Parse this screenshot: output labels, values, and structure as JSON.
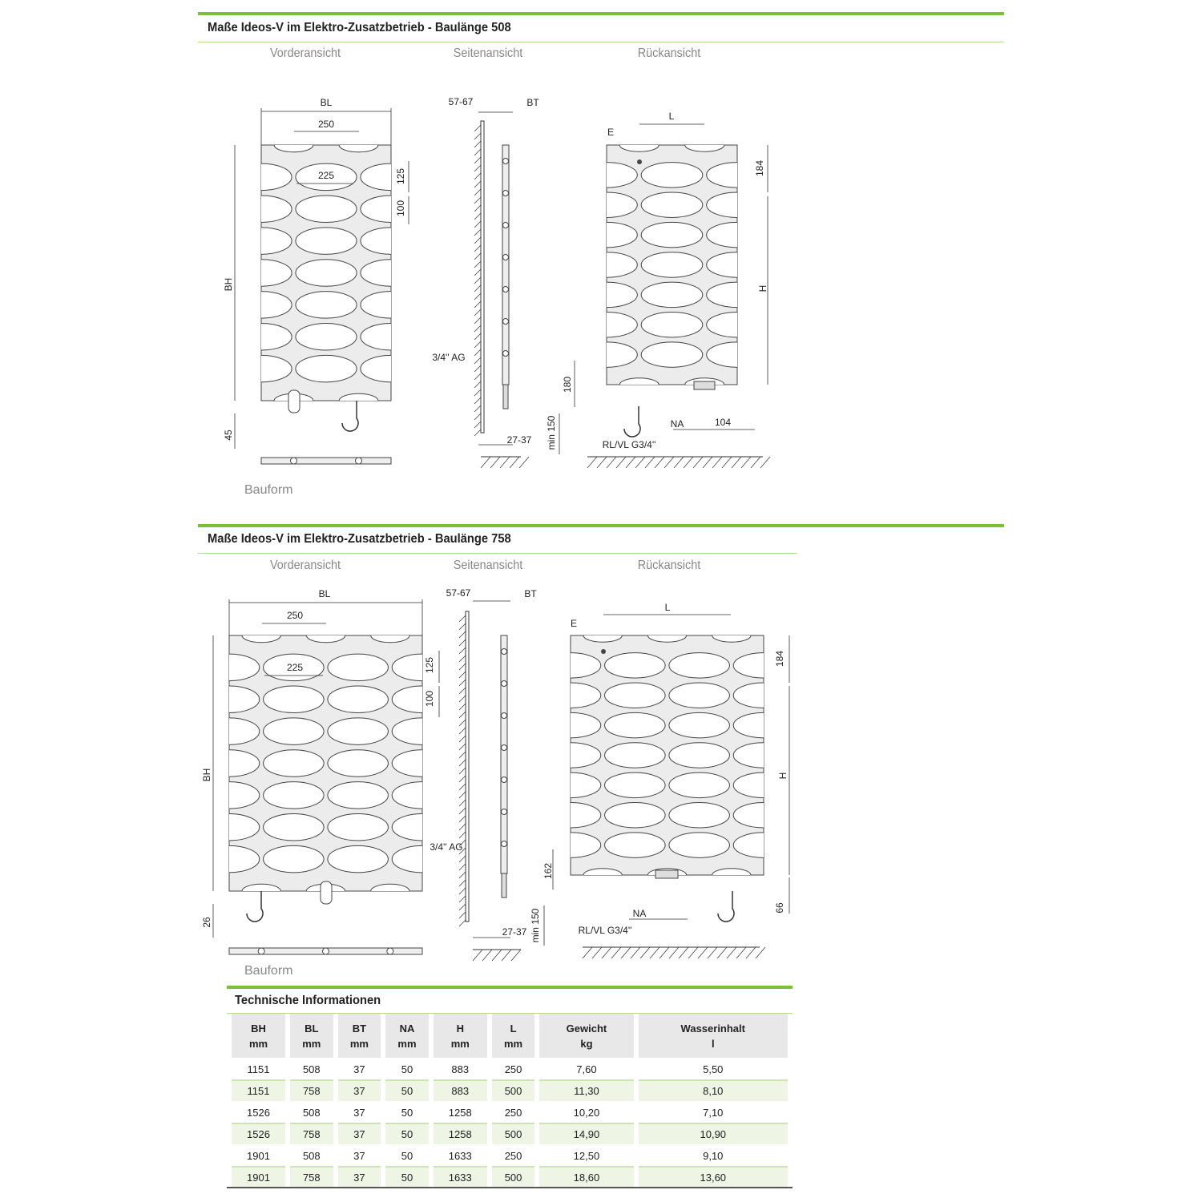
{
  "sections": [
    {
      "title": "Maße Ideos-V im Elektro-Zusatzbetrieb - Baulänge 508",
      "views": [
        "Vorderansicht",
        "Seitenansicht",
        "Rückansicht"
      ],
      "front": {
        "BL": "BL",
        "d250": "250",
        "d225": "225",
        "d125": "125",
        "d100": "100",
        "BH": "BH",
        "bottom": "45"
      },
      "side": {
        "wall": "57-67",
        "BT": "BT",
        "connector": "3/4'' AG",
        "depth": "27-37",
        "min": "min 150"
      },
      "back": {
        "L": "L",
        "E": "E",
        "d184": "184",
        "H": "H",
        "low": "180",
        "NA": "NA",
        "d104": "104",
        "conn": "RL/VL G3/4''"
      },
      "bauform": "Bauform"
    },
    {
      "title": "Maße Ideos-V im Elektro-Zusatzbetrieb - Baulänge 758",
      "views": [
        "Vorderansicht",
        "Seitenansicht",
        "Rückansicht"
      ],
      "front": {
        "BL": "BL",
        "d250": "250",
        "d225": "225",
        "d125": "125",
        "d100": "100",
        "BH": "BH",
        "bottom": "26"
      },
      "side": {
        "wall": "57-67",
        "BT": "BT",
        "connector": "3/4'' AG",
        "depth": "27-37",
        "min": "min 150"
      },
      "back": {
        "L": "L",
        "E": "E",
        "d184": "184",
        "H": "H",
        "low": "162",
        "bottom": "66",
        "NA": "NA",
        "conn": "RL/VL G3/4''"
      },
      "bauform": "Bauform"
    }
  ],
  "table": {
    "title": "Technische Informationen",
    "headers": [
      [
        "BH",
        "mm"
      ],
      [
        "BL",
        "mm"
      ],
      [
        "BT",
        "mm"
      ],
      [
        "NA",
        "mm"
      ],
      [
        "H",
        "mm"
      ],
      [
        "L",
        "mm"
      ],
      [
        "Gewicht",
        "kg"
      ],
      [
        "Wasserinhalt",
        "l"
      ]
    ],
    "rows": [
      [
        "1151",
        "508",
        "37",
        "50",
        "883",
        "250",
        "7,60",
        "5,50"
      ],
      [
        "1151",
        "758",
        "37",
        "50",
        "883",
        "500",
        "11,30",
        "8,10"
      ],
      [
        "1526",
        "508",
        "37",
        "50",
        "1258",
        "250",
        "10,20",
        "7,10"
      ],
      [
        "1526",
        "758",
        "37",
        "50",
        "1258",
        "500",
        "14,90",
        "10,90"
      ],
      [
        "1901",
        "508",
        "37",
        "50",
        "1633",
        "250",
        "12,50",
        "9,10"
      ],
      [
        "1901",
        "758",
        "37",
        "50",
        "1633",
        "500",
        "18,60",
        "13,60"
      ]
    ]
  },
  "colors": {
    "accent": "#7cbf3a",
    "body": "#ececec"
  }
}
